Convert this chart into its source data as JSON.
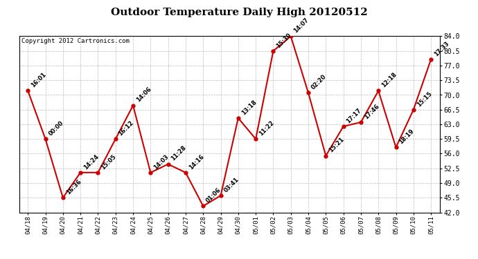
{
  "title": "Outdoor Temperature Daily High 20120512",
  "copyright": "Copyright 2012 Cartronics.com",
  "line_color": "#cc0000",
  "marker_color": "#cc0000",
  "bg_color": "#ffffff",
  "grid_color": "#bbbbbb",
  "x_labels": [
    "04/18",
    "04/19",
    "04/20",
    "04/21",
    "04/22",
    "04/23",
    "04/24",
    "04/25",
    "04/26",
    "04/27",
    "04/28",
    "04/29",
    "04/30",
    "05/01",
    "05/02",
    "05/03",
    "05/04",
    "05/05",
    "05/06",
    "05/07",
    "05/08",
    "05/09",
    "05/10",
    "05/11"
  ],
  "y_values": [
    71.0,
    59.5,
    45.5,
    51.5,
    51.5,
    59.5,
    67.5,
    51.5,
    53.5,
    51.5,
    43.5,
    46.0,
    64.5,
    59.5,
    80.5,
    84.0,
    70.5,
    55.5,
    62.5,
    63.5,
    71.0,
    57.5,
    66.5,
    78.5
  ],
  "annotations": [
    "16:01",
    "00:00",
    "16:36",
    "14:24",
    "15:05",
    "16:12",
    "14:06",
    "14:03",
    "11:28",
    "14:16",
    "01:06",
    "03:41",
    "13:18",
    "11:22",
    "15:30",
    "14:07",
    "02:20",
    "15:21",
    "17:17",
    "17:46",
    "12:18",
    "18:19",
    "15:15",
    "17:33"
  ],
  "ylim_min": 42.0,
  "ylim_max": 84.0,
  "yticks": [
    42.0,
    45.5,
    49.0,
    52.5,
    56.0,
    59.5,
    63.0,
    66.5,
    70.0,
    73.5,
    77.0,
    80.5,
    84.0
  ],
  "annotation_fontsize": 6,
  "xlabel_fontsize": 6.5,
  "ylabel_fontsize": 7,
  "title_fontsize": 11,
  "copyright_fontsize": 6.5
}
